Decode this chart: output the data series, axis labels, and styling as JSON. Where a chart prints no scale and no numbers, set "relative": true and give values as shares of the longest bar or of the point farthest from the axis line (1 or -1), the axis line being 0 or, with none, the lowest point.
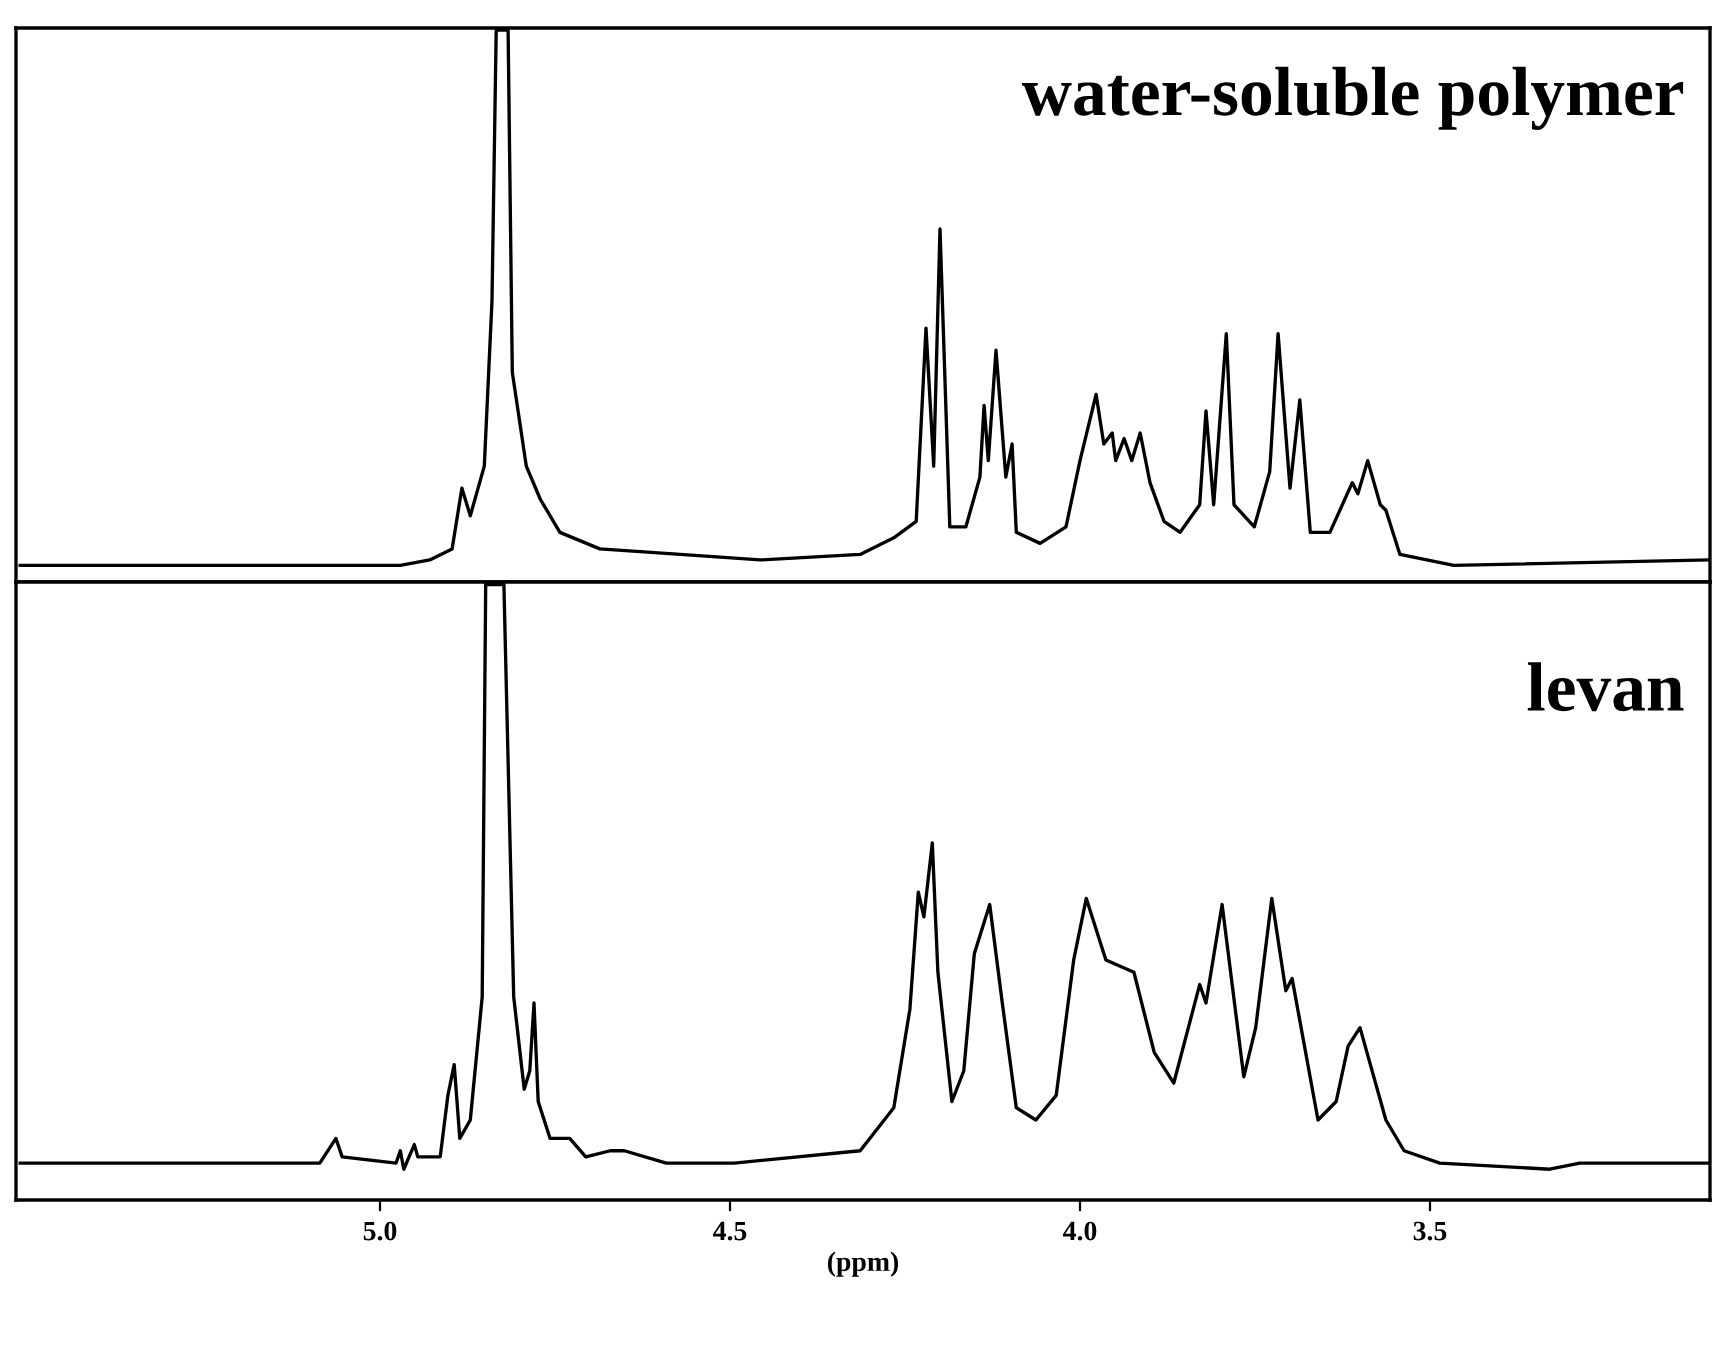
{
  "chart_data": [
    {
      "type": "line",
      "relative": true,
      "tick_labels": false,
      "xlim": [
        5.52,
        3.1
      ],
      "annotations": [
        "water-soluble polymer"
      ],
      "grid": false,
      "series": [
        {
          "color": "#000000",
          "x": [
            5.514,
            4.971,
            4.929,
            4.897,
            4.883,
            4.871,
            4.851,
            4.84,
            4.834,
            4.817,
            4.811,
            4.791,
            4.771,
            4.743,
            4.686,
            4.571,
            4.457,
            4.314,
            4.266,
            4.234,
            4.22,
            4.209,
            4.2,
            4.186,
            4.163,
            4.143,
            4.137,
            4.131,
            4.12,
            4.106,
            4.097,
            4.091,
            4.057,
            4.02,
            4.0,
            3.977,
            3.966,
            3.954,
            3.949,
            3.937,
            3.926,
            3.914,
            3.9,
            3.88,
            3.857,
            3.829,
            3.82,
            3.809,
            3.791,
            3.78,
            3.751,
            3.729,
            3.717,
            3.7,
            3.686,
            3.671,
            3.643,
            3.611,
            3.603,
            3.589,
            3.571,
            3.563,
            3.543,
            3.466,
            3.1
          ],
          "values": [
            0.03,
            0.03,
            0.04,
            0.06,
            0.17,
            0.12,
            0.21,
            0.51,
            1,
            1,
            0.38,
            0.21,
            0.15,
            0.09,
            0.06,
            0.05,
            0.04,
            0.05,
            0.08,
            0.11,
            0.46,
            0.21,
            0.64,
            0.1,
            0.1,
            0.19,
            0.32,
            0.22,
            0.42,
            0.19,
            0.25,
            0.09,
            0.07,
            0.1,
            0.22,
            0.34,
            0.25,
            0.27,
            0.22,
            0.26,
            0.22,
            0.27,
            0.18,
            0.11,
            0.09,
            0.14,
            0.31,
            0.14,
            0.45,
            0.14,
            0.1,
            0.2,
            0.45,
            0.17,
            0.33,
            0.09,
            0.09,
            0.18,
            0.16,
            0.22,
            0.14,
            0.13,
            0.05,
            0.03,
            0.04
          ]
        }
      ]
    },
    {
      "type": "line",
      "relative": true,
      "tick_labels": "x",
      "xlim": [
        5.52,
        3.1
      ],
      "xticks": [
        {
          "value": 5,
          "label": "5.0"
        },
        4.5,
        {
          "value": 4,
          "label": "4.0"
        },
        3.5
      ],
      "xlabel": "(ppm)",
      "annotations": [
        "levan"
      ],
      "grid": false,
      "series": [
        {
          "color": "#000000",
          "x": [
            5.514,
            5.434,
            5.42,
            5.086,
            5.063,
            5.054,
            4.977,
            4.971,
            4.966,
            4.951,
            4.946,
            4.914,
            4.903,
            4.894,
            4.886,
            4.871,
            4.854,
            4.849,
            4.823,
            4.809,
            4.794,
            4.786,
            4.78,
            4.774,
            4.757,
            4.729,
            4.706,
            4.671,
            4.651,
            4.591,
            4.494,
            4.314,
            4.266,
            4.243,
            4.231,
            4.223,
            4.211,
            4.203,
            4.183,
            4.166,
            4.151,
            4.129,
            4.111,
            4.091,
            4.063,
            4.034,
            4.009,
            3.991,
            3.963,
            3.923,
            3.894,
            3.866,
            3.829,
            3.82,
            3.797,
            3.766,
            3.749,
            3.726,
            3.706,
            3.697,
            3.66,
            3.634,
            3.617,
            3.6,
            3.563,
            3.537,
            3.486,
            3.329,
            3.286,
            3.1
          ],
          "values": [
            0.06,
            0.06,
            0.06,
            0.06,
            0.1,
            0.07,
            0.06,
            0.08,
            0.05,
            0.09,
            0.07,
            0.07,
            0.17,
            0.22,
            0.1,
            0.13,
            0.33,
            1,
            1,
            0.33,
            0.18,
            0.21,
            0.32,
            0.16,
            0.1,
            0.1,
            0.07,
            0.08,
            0.08,
            0.06,
            0.06,
            0.08,
            0.15,
            0.31,
            0.5,
            0.46,
            0.58,
            0.37,
            0.16,
            0.21,
            0.4,
            0.48,
            0.32,
            0.15,
            0.13,
            0.17,
            0.39,
            0.49,
            0.39,
            0.37,
            0.24,
            0.19,
            0.35,
            0.32,
            0.48,
            0.2,
            0.28,
            0.49,
            0.34,
            0.36,
            0.13,
            0.16,
            0.25,
            0.28,
            0.13,
            0.08,
            0.06,
            0.05,
            0.06,
            0.06
          ]
        }
      ]
    }
  ]
}
